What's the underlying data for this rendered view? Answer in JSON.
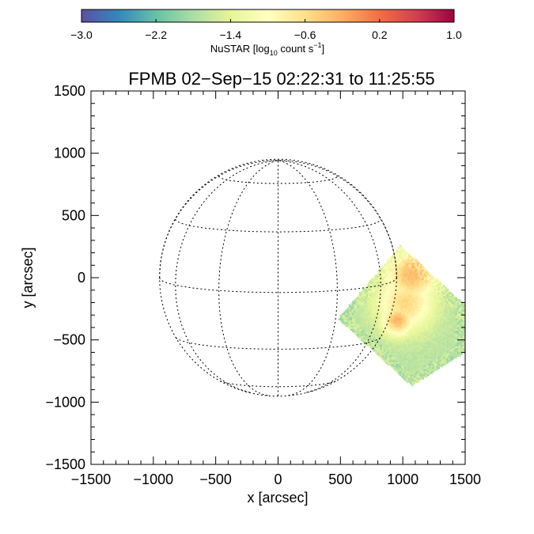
{
  "chart_data": {
    "type": "heatmap",
    "title": "FPMB 02−Sep−15 02:22:31 to 11:25:55",
    "xlabel": "x [arcsec]",
    "ylabel": "y [arcsec]",
    "xlim": [
      -1500,
      1500
    ],
    "ylim": [
      -1500,
      1500
    ],
    "x_ticks": [
      -1500,
      -1000,
      -500,
      0,
      500,
      1000,
      1500
    ],
    "y_ticks": [
      -1500,
      -1000,
      -500,
      0,
      500,
      1000,
      1500
    ],
    "x_tick_labels": [
      "−1500",
      "−1000",
      "−500",
      "0",
      "500",
      "1000",
      "1500"
    ],
    "y_tick_labels": [
      "−1500",
      "−1000",
      "−500",
      "0",
      "500",
      "1000",
      "1500"
    ],
    "minor_tick_step": 100,
    "colorbar": {
      "title_main": "NuSTAR [log",
      "title_sub": "10",
      "title_rest": " count s",
      "title_sup": "−1",
      "title_end": "]",
      "range": [
        -3.0,
        1.0
      ],
      "ticks": [
        -3.0,
        -2.2,
        -1.4,
        -0.6,
        0.2,
        1.0
      ],
      "tick_labels": [
        "−3.0",
        "−2.2",
        "−1.4",
        "−0.6",
        "0.2",
        "1.0"
      ],
      "colors": [
        "#5e4fa2",
        "#3288bd",
        "#66c2a5",
        "#abdda4",
        "#e6f598",
        "#ffffbf",
        "#fee08b",
        "#fdae61",
        "#f46d43",
        "#d53e4f",
        "#9e0142"
      ]
    },
    "solar_disk": {
      "center": [
        0,
        0
      ],
      "radius": 950,
      "grid_spacing_deg": 30
    },
    "image_region": {
      "description_values_log10_rate": "NuSTAR FOV tilted square over west limb",
      "corners": [
        [
          980,
          260
        ],
        [
          1500,
          -220
        ],
        [
          1500,
          -600
        ],
        [
          1070,
          -870
        ],
        [
          480,
          -330
        ]
      ],
      "sources": [
        {
          "x": 1070,
          "y": 20,
          "peak": -0.3,
          "sigma": 150
        },
        {
          "x": 960,
          "y": -340,
          "peak": -0.25,
          "sigma": 90
        },
        {
          "x": 1020,
          "y": -200,
          "peak": -0.55,
          "sigma": 160
        }
      ],
      "background": -1.7,
      "edge_level": -2.3
    }
  }
}
